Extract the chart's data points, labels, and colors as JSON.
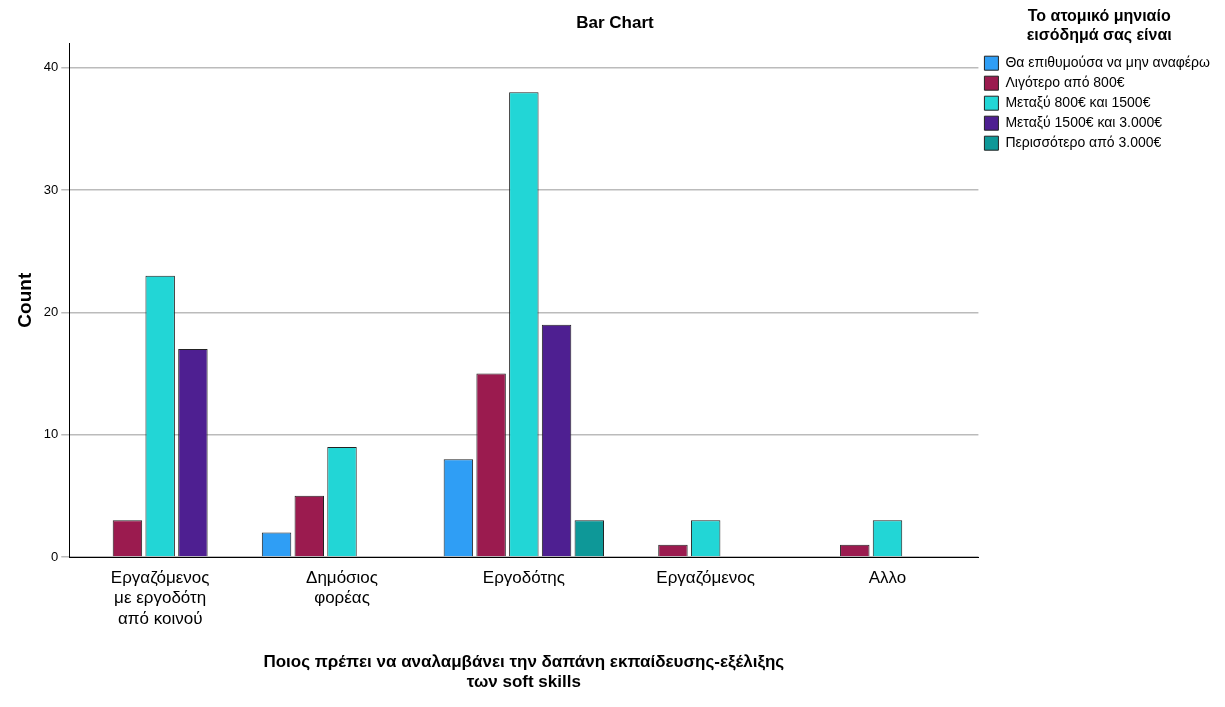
{
  "chart_data": {
    "type": "bar",
    "title": "Bar Chart",
    "xlabel": "Ποιος πρέπει να αναλαμβάνει την δαπάνη εκπαίδευσης-εξέλιξης των soft skills",
    "ylabel": "Count",
    "legend_title": "Το ατομικό μηνιαίο εισόδημά σας είναι",
    "categories": [
      "Εργαζόμενος με εργοδότη από κοινού",
      "Δημόσιος φορέας",
      "Εργοδότης",
      "Εργαζόμενος",
      "Αλλο"
    ],
    "series": [
      {
        "name": "Θα επιθυμούσα να μην αναφέρω",
        "color": "#2f9ef5",
        "values": [
          null,
          2,
          8,
          null,
          null
        ]
      },
      {
        "name": "Λιγότερο από 800€",
        "color": "#9b1b4f",
        "values": [
          3,
          5,
          15,
          1,
          1
        ]
      },
      {
        "name": "Μεταξύ 800€ και 1500€",
        "color": "#22d6d6",
        "values": [
          23,
          9,
          38,
          3,
          3
        ]
      },
      {
        "name": "Μεταξύ 1500€ και 3.000€",
        "color": "#4e1f91",
        "values": [
          17,
          null,
          19,
          null,
          null
        ]
      },
      {
        "name": "Περισσότερο από 3.000€",
        "color": "#0e9898",
        "values": [
          null,
          null,
          3,
          null,
          null
        ]
      }
    ],
    "ylim": [
      0,
      42
    ],
    "yticks": [
      0,
      10,
      20,
      30,
      40
    ],
    "grid": "y",
    "legend": "top right"
  }
}
